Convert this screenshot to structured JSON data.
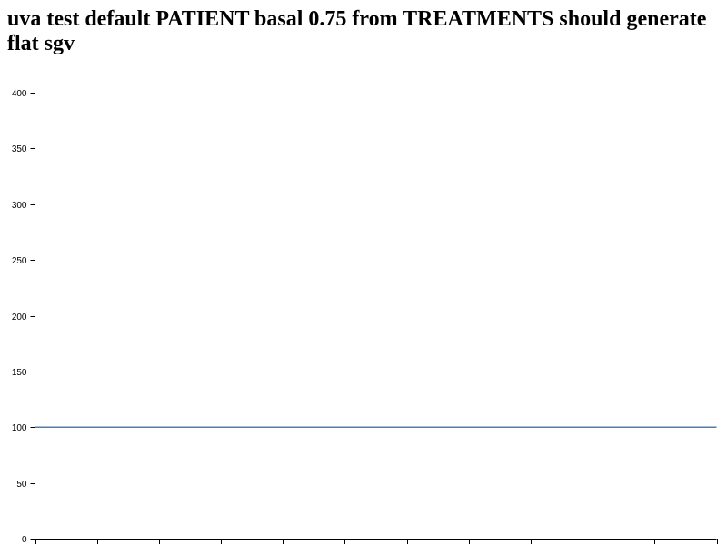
{
  "page": {
    "title": "uva test default PATIENT basal 0.75 from TREATMENTS should generate flat sgv"
  },
  "chart_data": {
    "type": "line",
    "title": "",
    "xlabel": "",
    "ylabel": "",
    "ylim": [
      0,
      400
    ],
    "yticks": [
      0,
      50,
      100,
      150,
      200,
      250,
      300,
      350,
      400
    ],
    "x_tick_count": 12,
    "xticks_labeled": false,
    "grid": false,
    "series": [
      {
        "values": [
          100,
          100,
          100,
          100,
          100,
          100,
          100,
          100,
          100,
          100,
          100,
          100
        ],
        "color": "#4682b4"
      }
    ]
  }
}
